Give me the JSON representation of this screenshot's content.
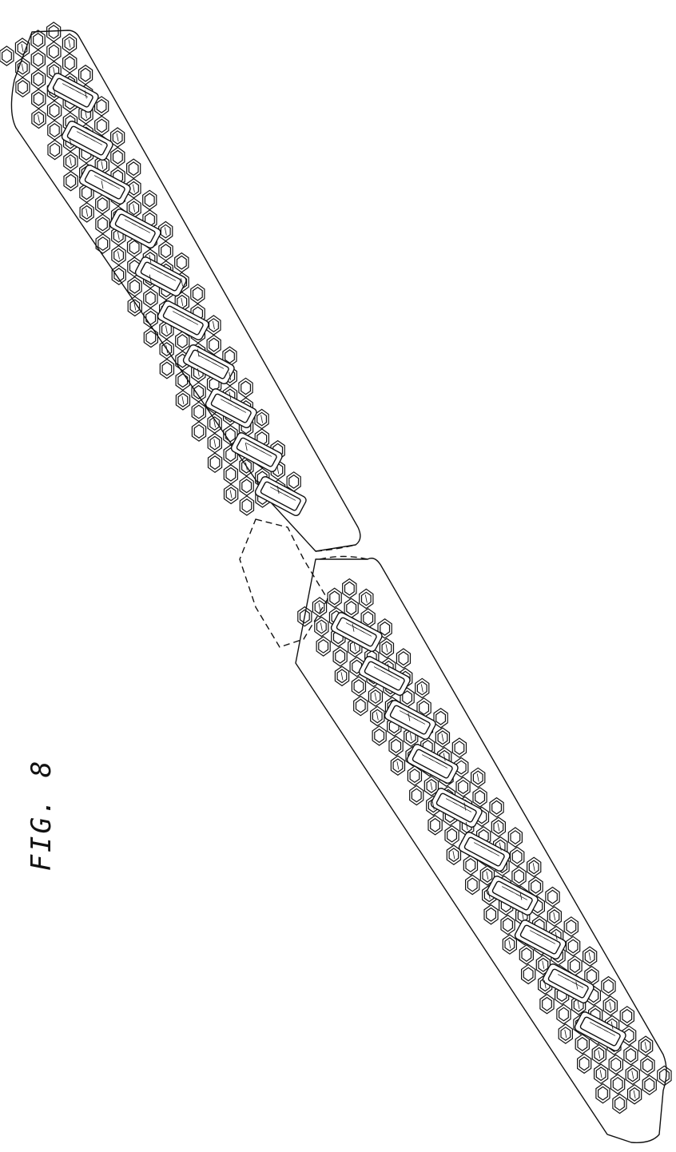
{
  "figure_label": "FIG. 8",
  "colors": {
    "ink": "#111111",
    "paper": "#ffffff"
  }
}
